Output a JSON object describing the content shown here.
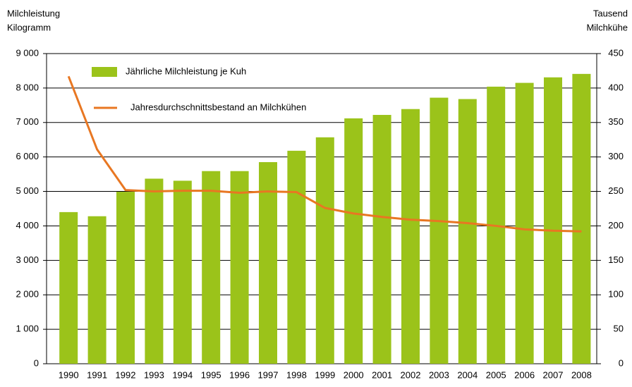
{
  "chart_data": {
    "type": "bar",
    "y_label": [
      "Milchleistung",
      "Kilogramm"
    ],
    "y2_label": [
      "Tausend",
      "Milchkühe"
    ],
    "categories": [
      "1990",
      "1991",
      "1992",
      "1993",
      "1994",
      "1995",
      "1996",
      "1997",
      "1998",
      "1999",
      "2000",
      "2001",
      "2002",
      "2003",
      "2004",
      "2005",
      "2006",
      "2007",
      "2008"
    ],
    "series": [
      {
        "name": "Jährliche Milchleistung je Kuh",
        "type": "bar",
        "color": "#9bc31a",
        "values": [
          4400,
          4280,
          4990,
          5370,
          5310,
          5590,
          5590,
          5850,
          6180,
          6570,
          7120,
          7220,
          7390,
          7720,
          7680,
          8040,
          8150,
          8310,
          8410
        ]
      },
      {
        "name": "Jahresdurchschnittsbestand an Milchkühen",
        "type": "line",
        "axis": "y2",
        "color": "#e87722",
        "values": [
          417,
          311,
          252,
          250,
          251,
          251,
          248,
          250,
          249,
          226,
          218,
          213,
          209,
          207,
          204,
          200,
          195,
          193,
          192
        ]
      }
    ],
    "ylim": [
      0,
      9000
    ],
    "yticks": [
      {
        "value": 0,
        "label": "0"
      },
      {
        "value": 1000,
        "label": "1 000"
      },
      {
        "value": 2000,
        "label": "2 000"
      },
      {
        "value": 3000,
        "label": "3 000"
      },
      {
        "value": 4000,
        "label": "4 000"
      },
      {
        "value": 5000,
        "label": "5 000"
      },
      {
        "value": 6000,
        "label": "6 000"
      },
      {
        "value": 7000,
        "label": "7 000"
      },
      {
        "value": 8000,
        "label": "8 000"
      },
      {
        "value": 9000,
        "label": "9 000"
      }
    ],
    "y2lim": [
      0,
      450
    ],
    "y2ticks": [
      0,
      50,
      100,
      150,
      200,
      250,
      300,
      350,
      400,
      450
    ],
    "grid": true
  }
}
